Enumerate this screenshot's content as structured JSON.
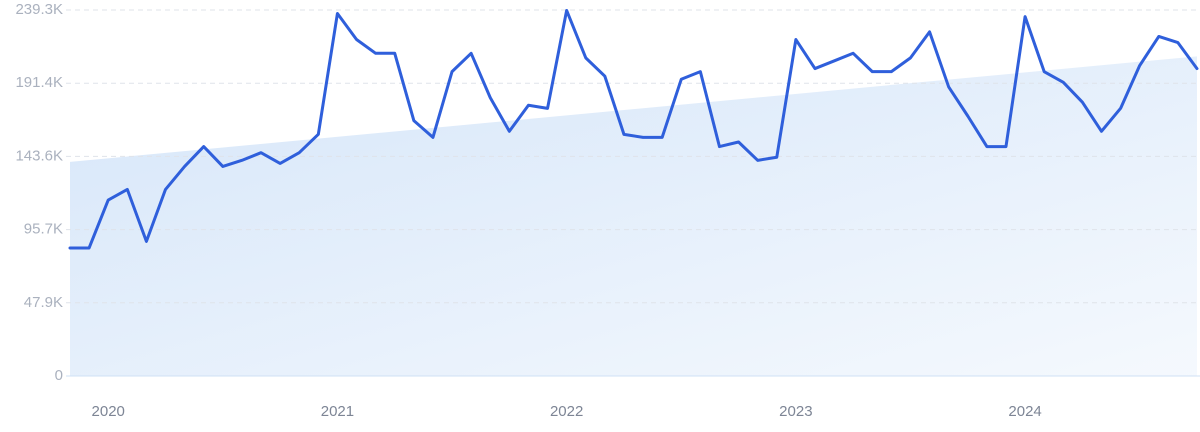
{
  "chart_data": {
    "type": "line",
    "categories": [
      null,
      null,
      "2020",
      null,
      null,
      null,
      null,
      null,
      null,
      null,
      null,
      null,
      null,
      null,
      "2021",
      null,
      null,
      null,
      null,
      null,
      null,
      null,
      null,
      null,
      null,
      null,
      "2022",
      null,
      null,
      null,
      null,
      null,
      null,
      null,
      null,
      null,
      null,
      null,
      "2023",
      null,
      null,
      null,
      null,
      null,
      null,
      null,
      null,
      null,
      null,
      null,
      "2024",
      null,
      null,
      null,
      null,
      null,
      null,
      null,
      null,
      null
    ],
    "series": [
      {
        "color": "#2f5fdb",
        "values": [
          83700,
          83700,
          115000,
          122000,
          88000,
          122000,
          137000,
          150000,
          137000,
          141000,
          146000,
          139000,
          146000,
          158000,
          237000,
          220000,
          211000,
          211000,
          167000,
          156000,
          199000,
          211000,
          182000,
          160000,
          177000,
          175000,
          239000,
          208000,
          196000,
          158000,
          156000,
          156000,
          194000,
          199000,
          150000,
          153000,
          141000,
          143000,
          220000,
          201000,
          206000,
          211000,
          199000,
          199000,
          208000,
          225000,
          189000,
          170000,
          150000,
          150000,
          235000,
          199000,
          192000,
          179000,
          160000,
          175000,
          203000,
          222000,
          218000,
          201000
        ]
      }
    ],
    "trend": {
      "color": "#d6e6f9",
      "values": [
        140000,
        209000
      ]
    },
    "ylim": [
      0,
      239300
    ],
    "yticks": [
      0,
      {
        "value": 47860,
        "label": "47.9K"
      },
      {
        "value": 95720,
        "label": "95.7K"
      },
      {
        "value": 143580,
        "label": "143.6K"
      },
      {
        "value": 191440,
        "label": "191.4K"
      },
      {
        "value": 239300,
        "label": "239.3K"
      }
    ],
    "grid": true
  }
}
